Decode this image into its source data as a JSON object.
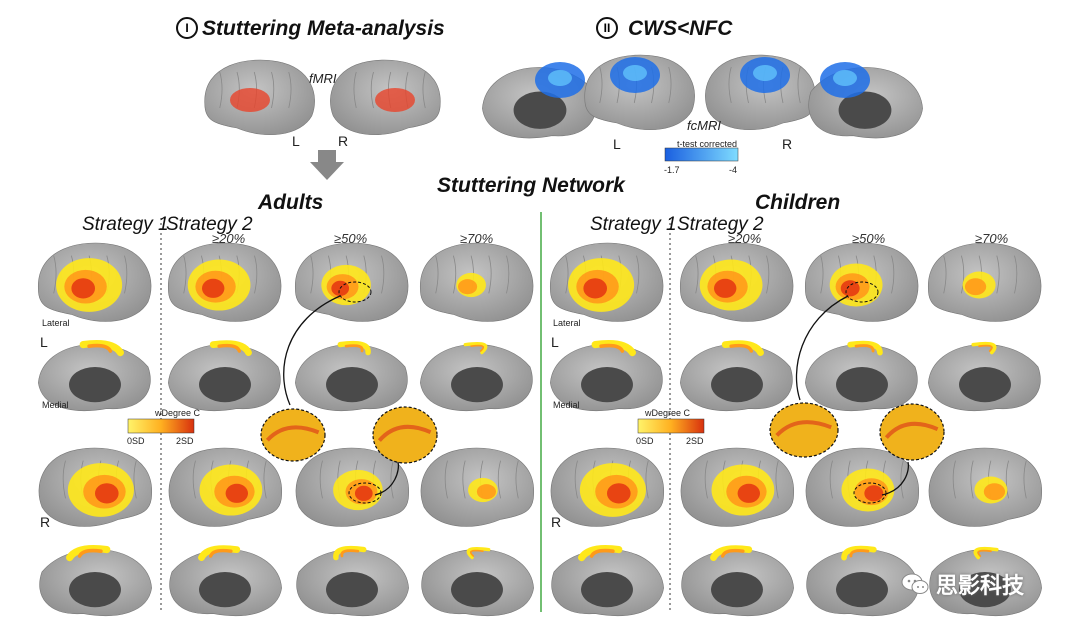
{
  "top": {
    "left_badge": "I",
    "left_title": "Stuttering Meta-analysis",
    "left_modality": "fMRI",
    "right_badge": "II",
    "right_title": "CWS<NFC",
    "right_modality": "fcMRI",
    "hemi_left": "L",
    "hemi_right": "R",
    "ttest_label": "t-test corrected",
    "ttest_min": "-1.7",
    "ttest_max": "-4"
  },
  "network_title": "Stuttering Network",
  "panels": {
    "adults": "Adults",
    "children": "Children"
  },
  "strategy": {
    "s1": "Strategy 1",
    "s2": "Strategy 2",
    "p20": "≥20%",
    "p50": "≥50%",
    "p70": "≥70%"
  },
  "row_labels": {
    "lateral": "Lateral",
    "medial": "Medial",
    "L": "L",
    "R": "R"
  },
  "colorbar": {
    "title": "wDegree C",
    "min": "0SD",
    "max": "2SD"
  },
  "watermark": "思影科技",
  "colors": {
    "brain": "#a9a9a9",
    "brain_dark": "#4a4a4a",
    "heat_low": "#ffe81a",
    "heat_mid": "#ff9a1a",
    "heat_high": "#e53a12",
    "fc_blue": "#1f6fe8",
    "fc_light": "#66ccff",
    "divider": "#44aa44"
  }
}
